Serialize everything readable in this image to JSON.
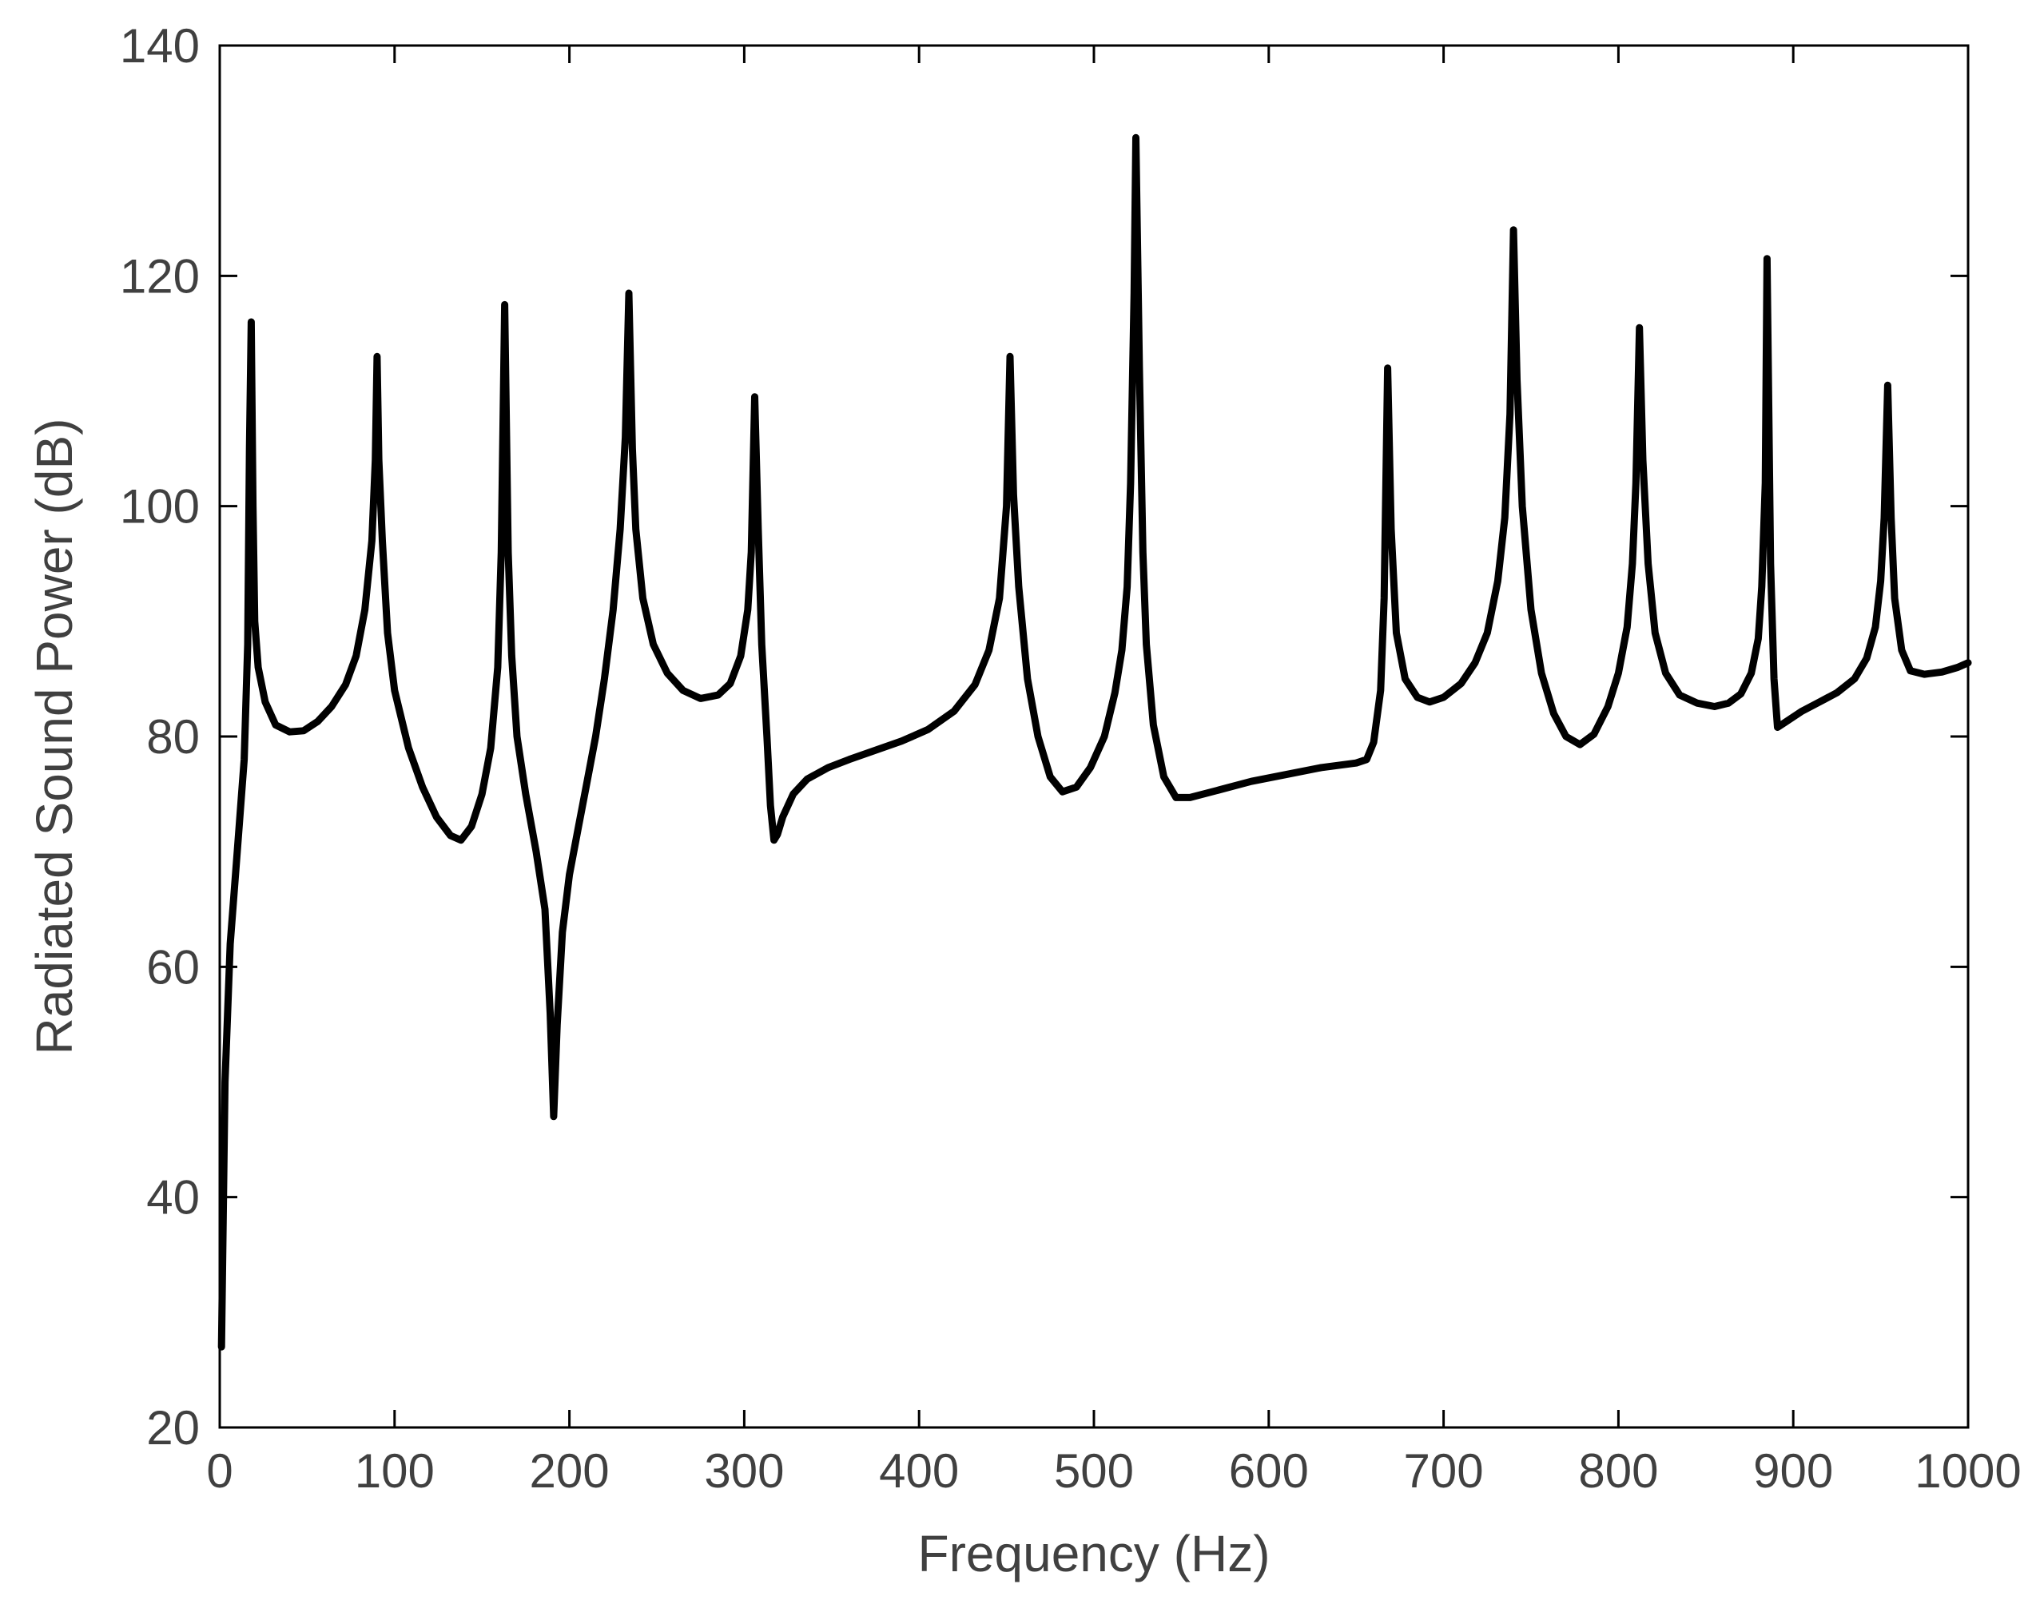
{
  "chart_data": {
    "type": "line",
    "title": "",
    "xlabel": "Frequency (Hz)",
    "ylabel": "Radiated Sound Power (dB)",
    "xlim": [
      0,
      1000
    ],
    "ylim": [
      20,
      140
    ],
    "xticks": [
      0,
      100,
      200,
      300,
      400,
      500,
      600,
      700,
      800,
      900,
      1000
    ],
    "yticks": [
      20,
      40,
      60,
      80,
      100,
      120,
      140
    ],
    "xtick_labels": [
      "0",
      "100",
      "200",
      "300",
      "400",
      "500",
      "600",
      "700",
      "800",
      "900",
      "1000"
    ],
    "ytick_labels": [
      "20",
      "40",
      "60",
      "80",
      "100",
      "120",
      "140"
    ],
    "grid": false,
    "legend": "none",
    "line_color": "#000000",
    "series": [
      {
        "points": [
          [
            1,
            27
          ],
          [
            3,
            50
          ],
          [
            6,
            62
          ],
          [
            10,
            70
          ],
          [
            14,
            78
          ],
          [
            16,
            88
          ],
          [
            17,
            105
          ],
          [
            18,
            116
          ],
          [
            19,
            100
          ],
          [
            20,
            90
          ],
          [
            22,
            86
          ],
          [
            26,
            83
          ],
          [
            32,
            81
          ],
          [
            40,
            80.4
          ],
          [
            48,
            80.5
          ],
          [
            56,
            81.3
          ],
          [
            64,
            82.6
          ],
          [
            72,
            84.5
          ],
          [
            78,
            87
          ],
          [
            83,
            91
          ],
          [
            87,
            97
          ],
          [
            89,
            104
          ],
          [
            90,
            113
          ],
          [
            91,
            104
          ],
          [
            93,
            97
          ],
          [
            96,
            89
          ],
          [
            100,
            84
          ],
          [
            108,
            79
          ],
          [
            116,
            75.6
          ],
          [
            124,
            73
          ],
          [
            132,
            71.4
          ],
          [
            138,
            71
          ],
          [
            144,
            72.2
          ],
          [
            150,
            75
          ],
          [
            155,
            79
          ],
          [
            159,
            86
          ],
          [
            161,
            96
          ],
          [
            163,
            117.5
          ],
          [
            165,
            96
          ],
          [
            167,
            87
          ],
          [
            170,
            80
          ],
          [
            175,
            75
          ],
          [
            181,
            70
          ],
          [
            186,
            65
          ],
          [
            189,
            56
          ],
          [
            191,
            47
          ],
          [
            193,
            55
          ],
          [
            196,
            63
          ],
          [
            200,
            68
          ],
          [
            205,
            72
          ],
          [
            210,
            76
          ],
          [
            215,
            80
          ],
          [
            220,
            85
          ],
          [
            225,
            91
          ],
          [
            229,
            98
          ],
          [
            232,
            106
          ],
          [
            234,
            118.5
          ],
          [
            236,
            105
          ],
          [
            238,
            98
          ],
          [
            242,
            92
          ],
          [
            248,
            88
          ],
          [
            256,
            85.5
          ],
          [
            265,
            84
          ],
          [
            275,
            83.3
          ],
          [
            285,
            83.6
          ],
          [
            292,
            84.6
          ],
          [
            298,
            87
          ],
          [
            302,
            91
          ],
          [
            304,
            96
          ],
          [
            306,
            109.5
          ],
          [
            308,
            98
          ],
          [
            310,
            88
          ],
          [
            313,
            80
          ],
          [
            315,
            74
          ],
          [
            317,
            71
          ],
          [
            319,
            71.5
          ],
          [
            322,
            73
          ],
          [
            328,
            75
          ],
          [
            336,
            76.3
          ],
          [
            348,
            77.3
          ],
          [
            360,
            78
          ],
          [
            375,
            78.8
          ],
          [
            390,
            79.6
          ],
          [
            405,
            80.6
          ],
          [
            420,
            82.2
          ],
          [
            432,
            84.5
          ],
          [
            440,
            87.5
          ],
          [
            446,
            92
          ],
          [
            450,
            100
          ],
          [
            452,
            113
          ],
          [
            454,
            101
          ],
          [
            457,
            93
          ],
          [
            462,
            85
          ],
          [
            468,
            80
          ],
          [
            475,
            76.5
          ],
          [
            482,
            75.2
          ],
          [
            490,
            75.6
          ],
          [
            498,
            77.3
          ],
          [
            506,
            80
          ],
          [
            512,
            83.8
          ],
          [
            516,
            87.5
          ],
          [
            519,
            93
          ],
          [
            521,
            102
          ],
          [
            523,
            118.5
          ],
          [
            524,
            132
          ],
          [
            526,
            112
          ],
          [
            528,
            96
          ],
          [
            530,
            88
          ],
          [
            534,
            81
          ],
          [
            540,
            76.5
          ],
          [
            547,
            74.7
          ],
          [
            555,
            74.7
          ],
          [
            570,
            75.3
          ],
          [
            590,
            76.1
          ],
          [
            610,
            76.7
          ],
          [
            630,
            77.3
          ],
          [
            650,
            77.7
          ],
          [
            656,
            78
          ],
          [
            660,
            79.5
          ],
          [
            664,
            84
          ],
          [
            666,
            92
          ],
          [
            668,
            112
          ],
          [
            670,
            98
          ],
          [
            673,
            89
          ],
          [
            678,
            85
          ],
          [
            685,
            83.4
          ],
          [
            692,
            83
          ],
          [
            700,
            83.4
          ],
          [
            710,
            84.6
          ],
          [
            718,
            86.4
          ],
          [
            725,
            89
          ],
          [
            731,
            93.5
          ],
          [
            735,
            99
          ],
          [
            738,
            108
          ],
          [
            740,
            124
          ],
          [
            742,
            111
          ],
          [
            745,
            100
          ],
          [
            750,
            91
          ],
          [
            756,
            85.5
          ],
          [
            763,
            82
          ],
          [
            770,
            80
          ],
          [
            778,
            79.3
          ],
          [
            786,
            80.2
          ],
          [
            794,
            82.6
          ],
          [
            800,
            85.5
          ],
          [
            805,
            89.5
          ],
          [
            808,
            95
          ],
          [
            810,
            102
          ],
          [
            812,
            115.5
          ],
          [
            814,
            104
          ],
          [
            817,
            95
          ],
          [
            821,
            89
          ],
          [
            827,
            85.5
          ],
          [
            835,
            83.6
          ],
          [
            845,
            82.9
          ],
          [
            855,
            82.6
          ],
          [
            863,
            82.9
          ],
          [
            870,
            83.7
          ],
          [
            876,
            85.5
          ],
          [
            880,
            88.5
          ],
          [
            882,
            93
          ],
          [
            884,
            102
          ],
          [
            885,
            121.5
          ],
          [
            887,
            95
          ],
          [
            889,
            85
          ],
          [
            891,
            80.8
          ],
          [
            895,
            81.2
          ],
          [
            905,
            82.2
          ],
          [
            915,
            83
          ],
          [
            925,
            83.8
          ],
          [
            935,
            85
          ],
          [
            942,
            86.8
          ],
          [
            947,
            89.5
          ],
          [
            950,
            93.5
          ],
          [
            952,
            99
          ],
          [
            954,
            110.5
          ],
          [
            956,
            99
          ],
          [
            958,
            92
          ],
          [
            962,
            87.5
          ],
          [
            967,
            85.7
          ],
          [
            975,
            85.4
          ],
          [
            985,
            85.6
          ],
          [
            994,
            86
          ],
          [
            1000,
            86.4
          ]
        ]
      }
    ]
  }
}
